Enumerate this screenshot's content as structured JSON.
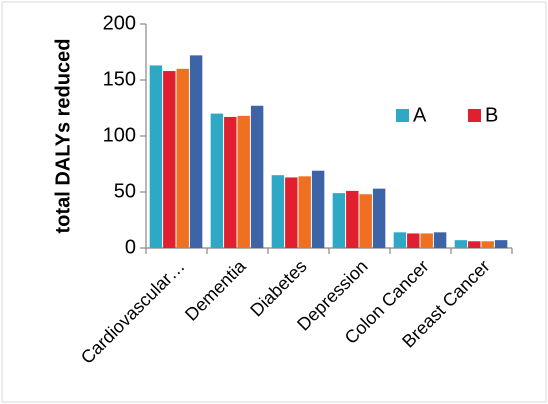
{
  "chart_data": {
    "type": "bar",
    "y_label": "total DALYs reduced",
    "categories": [
      "Cardiovascular…",
      "Dementia",
      "Diabetes",
      "Depression",
      "Colon Cancer",
      "Breast Cancer"
    ],
    "series": [
      {
        "name": "A",
        "color": "#2ea8c5",
        "values": [
          163,
          120,
          65,
          49,
          14,
          7
        ]
      },
      {
        "name": "B",
        "color": "#e0202e",
        "values": [
          158,
          117,
          63,
          51,
          13,
          6
        ]
      },
      {
        "color": "#f07022",
        "values": [
          160,
          118,
          64,
          48,
          13,
          6
        ]
      },
      {
        "color": "#3e64a8",
        "values": [
          172,
          127,
          69,
          53,
          14,
          7
        ]
      }
    ],
    "ylim": [
      0,
      200
    ],
    "yticks": [
      0,
      50,
      100,
      150,
      200
    ],
    "grid": false,
    "legend": "right"
  }
}
